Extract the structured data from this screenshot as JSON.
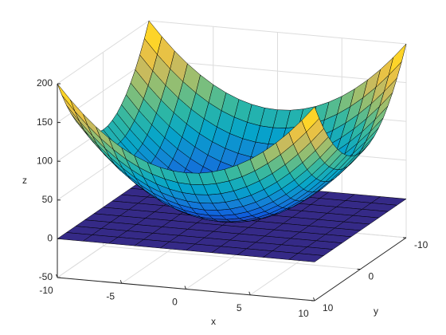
{
  "chart_data": {
    "type": "surface",
    "xlabel": "x",
    "ylabel": "y",
    "zlabel": "z",
    "xlim": [
      -10,
      10
    ],
    "ylim": [
      -10,
      10
    ],
    "zlim": [
      -50,
      200
    ],
    "xticks": [
      -10,
      -5,
      0,
      5,
      10
    ],
    "yticks": [
      -10,
      0,
      10
    ],
    "zticks": [
      -50,
      0,
      50,
      100,
      150,
      200
    ],
    "grid": true,
    "surfaces": [
      {
        "x": [
          -10,
          -9,
          -8,
          -7,
          -6,
          -5,
          -4,
          -3,
          -2,
          -1,
          0,
          1,
          2,
          3,
          4,
          5,
          6,
          7,
          8,
          9,
          10
        ],
        "y": [
          -10,
          -9,
          -8,
          -7,
          -6,
          -5,
          -4,
          -3,
          -2,
          -1,
          0,
          1,
          2,
          3,
          4,
          5,
          6,
          7,
          8,
          9,
          10
        ],
        "z": [
          [
            200,
            181,
            164,
            149,
            136,
            125,
            116,
            109,
            104,
            101,
            100,
            101,
            104,
            109,
            116,
            125,
            136,
            149,
            164,
            181,
            200
          ],
          [
            181,
            162,
            145,
            130,
            117,
            106,
            97,
            90,
            85,
            82,
            81,
            82,
            85,
            90,
            97,
            106,
            117,
            130,
            145,
            162,
            181
          ],
          [
            164,
            145,
            128,
            113,
            100,
            89,
            80,
            73,
            68,
            65,
            64,
            65,
            68,
            73,
            80,
            89,
            100,
            113,
            128,
            145,
            164
          ],
          [
            149,
            130,
            113,
            98,
            85,
            74,
            65,
            58,
            53,
            50,
            49,
            50,
            53,
            58,
            65,
            74,
            85,
            98,
            113,
            130,
            149
          ],
          [
            136,
            117,
            100,
            85,
            72,
            61,
            52,
            45,
            40,
            37,
            36,
            37,
            40,
            45,
            52,
            61,
            72,
            85,
            100,
            117,
            136
          ],
          [
            125,
            106,
            89,
            74,
            61,
            50,
            41,
            34,
            29,
            26,
            25,
            26,
            29,
            34,
            41,
            50,
            61,
            74,
            89,
            106,
            125
          ],
          [
            116,
            97,
            80,
            65,
            52,
            41,
            32,
            25,
            20,
            17,
            16,
            17,
            20,
            25,
            32,
            41,
            52,
            65,
            80,
            97,
            116
          ],
          [
            109,
            90,
            73,
            58,
            45,
            34,
            25,
            18,
            13,
            10,
            9,
            10,
            13,
            18,
            25,
            34,
            45,
            58,
            73,
            90,
            109
          ],
          [
            104,
            85,
            68,
            53,
            40,
            29,
            20,
            13,
            8,
            5,
            4,
            5,
            8,
            13,
            20,
            29,
            40,
            53,
            68,
            85,
            104
          ],
          [
            101,
            82,
            65,
            50,
            37,
            26,
            17,
            10,
            5,
            2,
            1,
            2,
            5,
            10,
            17,
            26,
            37,
            50,
            65,
            82,
            101
          ],
          [
            100,
            81,
            64,
            49,
            36,
            25,
            16,
            9,
            4,
            1,
            0,
            1,
            4,
            9,
            16,
            25,
            36,
            49,
            64,
            81,
            100
          ],
          [
            101,
            82,
            65,
            50,
            37,
            26,
            17,
            10,
            5,
            2,
            1,
            2,
            5,
            10,
            17,
            26,
            37,
            50,
            65,
            82,
            101
          ],
          [
            104,
            85,
            68,
            53,
            40,
            29,
            20,
            13,
            8,
            5,
            4,
            5,
            8,
            13,
            20,
            29,
            40,
            53,
            68,
            85,
            104
          ],
          [
            109,
            90,
            73,
            58,
            45,
            34,
            25,
            18,
            13,
            10,
            9,
            10,
            13,
            18,
            25,
            34,
            45,
            58,
            73,
            90,
            109
          ],
          [
            116,
            97,
            80,
            65,
            52,
            41,
            32,
            25,
            20,
            17,
            16,
            17,
            20,
            25,
            32,
            41,
            52,
            65,
            80,
            97,
            116
          ],
          [
            125,
            106,
            89,
            74,
            61,
            50,
            41,
            34,
            29,
            26,
            25,
            26,
            29,
            34,
            41,
            50,
            61,
            74,
            89,
            106,
            125
          ],
          [
            136,
            117,
            100,
            85,
            72,
            61,
            52,
            45,
            40,
            37,
            36,
            37,
            40,
            45,
            52,
            61,
            72,
            85,
            100,
            117,
            136
          ],
          [
            149,
            130,
            113,
            98,
            85,
            74,
            65,
            58,
            53,
            50,
            49,
            50,
            53,
            58,
            65,
            74,
            85,
            98,
            113,
            130,
            149
          ],
          [
            164,
            145,
            128,
            113,
            100,
            89,
            80,
            73,
            68,
            65,
            64,
            65,
            68,
            73,
            80,
            89,
            100,
            113,
            128,
            145,
            164
          ],
          [
            181,
            162,
            145,
            130,
            117,
            106,
            97,
            90,
            85,
            82,
            81,
            82,
            85,
            90,
            97,
            106,
            117,
            130,
            145,
            162,
            181
          ],
          [
            200,
            181,
            164,
            149,
            136,
            125,
            116,
            109,
            104,
            101,
            100,
            101,
            104,
            109,
            116,
            125,
            136,
            149,
            164,
            181,
            200
          ]
        ]
      },
      {
        "x": [
          -10,
          -8,
          -6,
          -4,
          -2,
          0,
          2,
          4,
          6,
          8,
          10
        ],
        "y": [
          -10,
          -8,
          -6,
          -4,
          -2,
          0,
          2,
          4,
          6,
          8,
          10
        ],
        "z": [
          [
            0,
            0,
            0,
            0,
            0,
            0,
            0,
            0,
            0,
            0,
            0
          ],
          [
            0,
            0,
            0,
            0,
            0,
            0,
            0,
            0,
            0,
            0,
            0
          ],
          [
            0,
            0,
            0,
            0,
            0,
            0,
            0,
            0,
            0,
            0,
            0
          ],
          [
            0,
            0,
            0,
            0,
            0,
            0,
            0,
            0,
            0,
            0,
            0
          ],
          [
            0,
            0,
            0,
            0,
            0,
            0,
            0,
            0,
            0,
            0,
            0
          ],
          [
            0,
            0,
            0,
            0,
            0,
            0,
            0,
            0,
            0,
            0,
            0
          ],
          [
            0,
            0,
            0,
            0,
            0,
            0,
            0,
            0,
            0,
            0,
            0
          ],
          [
            0,
            0,
            0,
            0,
            0,
            0,
            0,
            0,
            0,
            0,
            0
          ],
          [
            0,
            0,
            0,
            0,
            0,
            0,
            0,
            0,
            0,
            0,
            0
          ],
          [
            0,
            0,
            0,
            0,
            0,
            0,
            0,
            0,
            0,
            0,
            0
          ],
          [
            0,
            0,
            0,
            0,
            0,
            0,
            0,
            0,
            0,
            0,
            0
          ]
        ]
      }
    ]
  }
}
